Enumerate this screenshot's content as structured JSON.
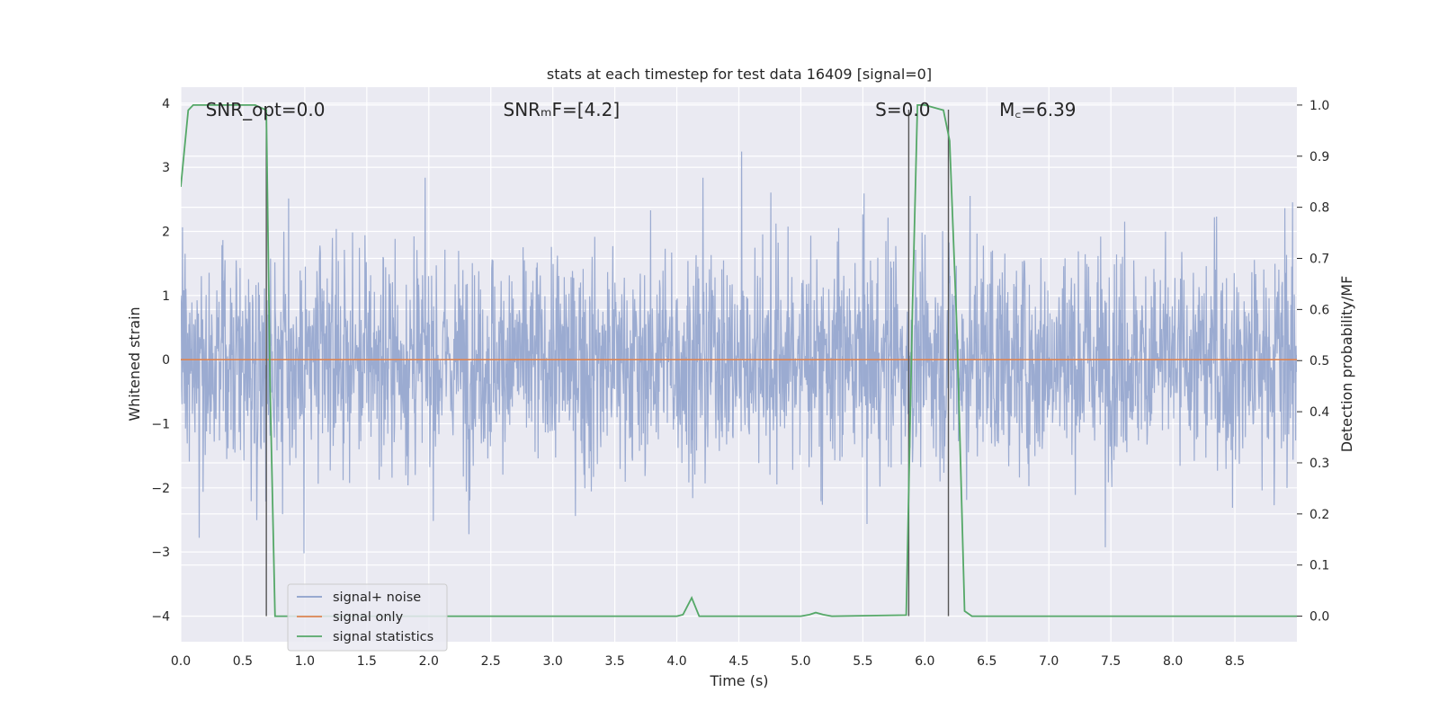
{
  "chart_data": {
    "type": "line",
    "title": "stats at each timestep for test data 16409 [signal=0]",
    "xlabel": "Time (s)",
    "ylabel": "Whitened strain",
    "y2label": "Detection probability/MF",
    "xlim": [
      0.0,
      9.0
    ],
    "ylim": [
      -4.4,
      4.25
    ],
    "y2lim": [
      -0.05,
      1.035
    ],
    "xticks": [
      0.0,
      0.5,
      1.0,
      1.5,
      2.0,
      2.5,
      3.0,
      3.5,
      4.0,
      4.5,
      5.0,
      5.5,
      6.0,
      6.5,
      7.0,
      7.5,
      8.0,
      8.5
    ],
    "xtick_labels": [
      "0.0",
      "0.5",
      "1.0",
      "1.5",
      "2.0",
      "2.5",
      "3.0",
      "3.5",
      "4.0",
      "4.5",
      "5.0",
      "5.5",
      "6.0",
      "6.5",
      "7.0",
      "7.5",
      "8.0",
      "8.5"
    ],
    "yticks": [
      -4,
      -3,
      -2,
      -1,
      0,
      1,
      2,
      3,
      4
    ],
    "ytick_labels": [
      "−4",
      "−3",
      "−2",
      "−1",
      "0",
      "1",
      "2",
      "3",
      "4"
    ],
    "y2ticks": [
      0.0,
      0.1,
      0.2,
      0.3,
      0.4,
      0.5,
      0.6,
      0.7,
      0.8,
      0.9,
      1.0
    ],
    "y2tick_labels": [
      "0.0",
      "0.1",
      "0.2",
      "0.3",
      "0.4",
      "0.5",
      "0.6",
      "0.7",
      "0.8",
      "0.9",
      "1.0"
    ],
    "grid": true,
    "legend_position": "lower-left",
    "annotations": [
      {
        "text": "SNR_opt=0.0",
        "x": 0.2,
        "y": 3.9
      },
      {
        "text": "SNRₘF=[4.2]",
        "x": 2.6,
        "y": 3.9
      },
      {
        "text": "S=0.0",
        "x": 5.6,
        "y": 3.9
      },
      {
        "text": "M꜀=6.39",
        "x": 6.6,
        "y": 3.9
      }
    ],
    "vlines": [
      {
        "x": 0.69,
        "y": [
          -4.0,
          3.9
        ]
      },
      {
        "x": 5.87,
        "y": [
          -4.0,
          3.9
        ]
      },
      {
        "x": 6.19,
        "y": [
          -4.0,
          3.9
        ]
      }
    ],
    "series": [
      {
        "name": "signal+ noise",
        "color": "#8da0cb",
        "axis": "left",
        "noise_envelope": {
          "x_start": 0.0,
          "x_end": 9.0,
          "core_amplitude": 1.3,
          "peak_max": 3.6,
          "peak_min": -3.9
        }
      },
      {
        "name": "signal only",
        "color": "#dd8452",
        "axis": "left",
        "x": [
          0.0,
          9.0
        ],
        "y": [
          0.0,
          0.0
        ]
      },
      {
        "name": "signal statistics",
        "color": "#55a868",
        "axis": "right",
        "x": [
          0.0,
          0.06,
          0.1,
          0.2,
          0.6,
          0.69,
          0.72,
          0.76,
          0.8,
          1.0,
          2.0,
          3.0,
          4.0,
          4.05,
          4.12,
          4.18,
          4.3,
          5.0,
          5.07,
          5.12,
          5.18,
          5.25,
          5.85,
          5.9,
          5.94,
          6.0,
          6.15,
          6.2,
          6.26,
          6.32,
          6.38,
          7.0,
          8.0,
          9.0
        ],
        "y": [
          0.84,
          0.99,
          1.0,
          1.0,
          1.0,
          0.99,
          0.45,
          0.0,
          0.0,
          0.0,
          0.0,
          0.0,
          0.0,
          0.003,
          0.036,
          0.0,
          0.0,
          0.0,
          0.003,
          0.007,
          0.003,
          0.0,
          0.002,
          0.6,
          1.0,
          1.0,
          0.99,
          0.93,
          0.55,
          0.01,
          0.0,
          0.0,
          0.0,
          0.0
        ]
      }
    ]
  }
}
